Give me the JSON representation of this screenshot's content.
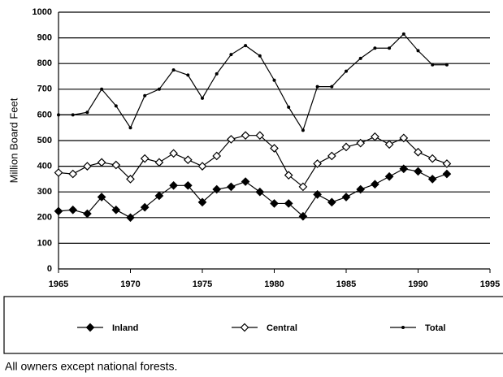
{
  "chart_data": {
    "type": "line",
    "y_label": "Million Board Feet",
    "note": "All owners except national forests.",
    "x": [
      1965,
      1966,
      1967,
      1968,
      1969,
      1970,
      1971,
      1972,
      1973,
      1974,
      1975,
      1976,
      1977,
      1978,
      1979,
      1980,
      1981,
      1982,
      1983,
      1984,
      1985,
      1986,
      1987,
      1988,
      1989,
      1990,
      1991,
      1992
    ],
    "series": [
      {
        "name": "Inland",
        "color": "#000000",
        "marker": "diamond",
        "values": [
          225,
          230,
          215,
          280,
          230,
          200,
          240,
          285,
          325,
          325,
          260,
          310,
          320,
          340,
          300,
          255,
          255,
          205,
          290,
          260,
          280,
          310,
          330,
          360,
          390,
          380,
          350,
          370
        ]
      },
      {
        "name": "Central",
        "color": "#000000",
        "marker": "open-diamond",
        "values": [
          375,
          370,
          400,
          415,
          405,
          350,
          430,
          415,
          450,
          425,
          400,
          440,
          505,
          520,
          520,
          470,
          365,
          320,
          410,
          440,
          475,
          490,
          515,
          485,
          510,
          455,
          430,
          410
        ]
      },
      {
        "name": "Total",
        "color": "#000000",
        "marker": "dot",
        "values": [
          600,
          600,
          610,
          700,
          635,
          550,
          675,
          700,
          775,
          755,
          665,
          760,
          835,
          870,
          830,
          735,
          630,
          540,
          710,
          710,
          770,
          820,
          860,
          860,
          915,
          850,
          795,
          795
        ]
      }
    ],
    "xlim": [
      1965,
      1995
    ],
    "xticks": [
      1965,
      1970,
      1975,
      1980,
      1985,
      1990,
      1995
    ],
    "ylim": [
      0,
      1000
    ],
    "yticks": [
      0,
      100,
      200,
      300,
      400,
      500,
      600,
      700,
      800,
      900,
      1000
    ],
    "grid": true
  }
}
